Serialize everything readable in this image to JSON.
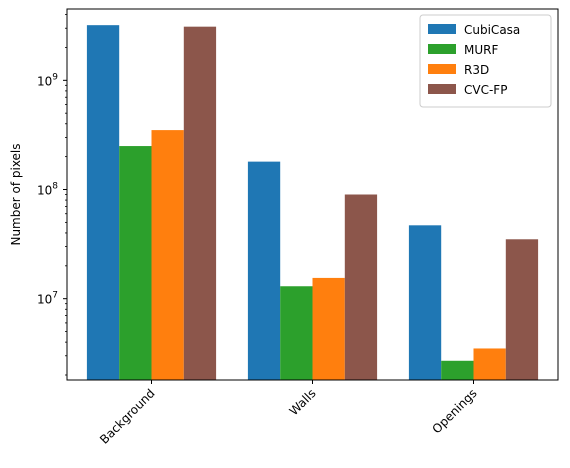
{
  "chart_data": {
    "type": "bar",
    "yscale": "log",
    "ylabel": "Number of pixels",
    "xlabel": "",
    "title": "",
    "ylim": [
      1800000,
      4500000000
    ],
    "categories": [
      "Background",
      "Walls",
      "Openings"
    ],
    "y_ticks": [
      {
        "value": 10000000,
        "base": "10",
        "exp": "7"
      },
      {
        "value": 100000000,
        "base": "10",
        "exp": "8"
      },
      {
        "value": 1000000000,
        "base": "10",
        "exp": "9"
      }
    ],
    "legend_position": "top-right",
    "grid": false,
    "series": [
      {
        "name": "CubiCasa",
        "color": "#1f77b4",
        "values": [
          3200000000,
          180000000,
          47000000
        ]
      },
      {
        "name": "MURF",
        "color": "#2ca02c",
        "values": [
          250000000,
          13000000,
          2700000
        ]
      },
      {
        "name": "R3D",
        "color": "#ff7f0e",
        "values": [
          350000000,
          15500000,
          3500000
        ]
      },
      {
        "name": "CVC-FP",
        "color": "#8c564b",
        "values": [
          3100000000,
          90000000,
          35000000
        ]
      }
    ]
  }
}
